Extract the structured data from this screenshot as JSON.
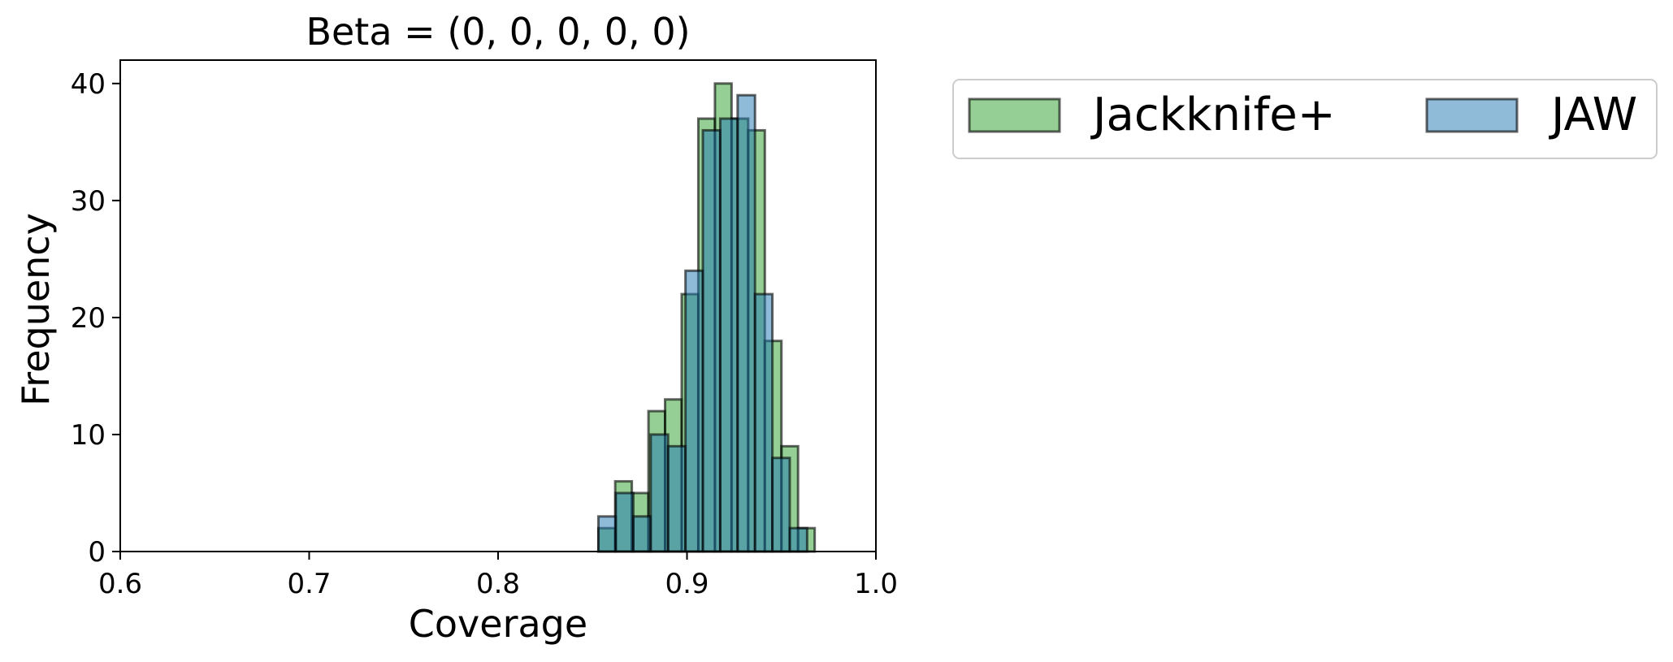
{
  "chart_data": {
    "type": "bar",
    "title": "Beta = (0, 0, 0, 0, 0)",
    "xlabel": "Coverage",
    "ylabel": "Frequency",
    "xlim": [
      0.6,
      1.0
    ],
    "ylim": [
      0,
      42
    ],
    "xticks": [
      0.6,
      0.7,
      0.8,
      0.9,
      1.0
    ],
    "xtick_labels": [
      "0.6",
      "0.7",
      "0.8",
      "0.9",
      "1.0"
    ],
    "yticks": [
      0,
      10,
      20,
      30,
      40
    ],
    "ytick_labels": [
      "0",
      "10",
      "20",
      "30",
      "40"
    ],
    "grid": false,
    "legend_position": "outside-right-top",
    "series": [
      {
        "name": "Jackknife+",
        "color": "#2ca02c",
        "bins": [
          {
            "x0": 0.8531,
            "x1": 0.862,
            "value": 2
          },
          {
            "x0": 0.862,
            "x1": 0.8708,
            "value": 6
          },
          {
            "x0": 0.8708,
            "x1": 0.8796,
            "value": 5
          },
          {
            "x0": 0.8796,
            "x1": 0.8884,
            "value": 12
          },
          {
            "x0": 0.8884,
            "x1": 0.8972,
            "value": 13
          },
          {
            "x0": 0.8972,
            "x1": 0.906,
            "value": 22
          },
          {
            "x0": 0.906,
            "x1": 0.9148,
            "value": 37
          },
          {
            "x0": 0.9148,
            "x1": 0.9236,
            "value": 40
          },
          {
            "x0": 0.9236,
            "x1": 0.9324,
            "value": 37
          },
          {
            "x0": 0.9324,
            "x1": 0.9412,
            "value": 36
          },
          {
            "x0": 0.9412,
            "x1": 0.95,
            "value": 18
          },
          {
            "x0": 0.95,
            "x1": 0.9588,
            "value": 9
          },
          {
            "x0": 0.9588,
            "x1": 0.9676,
            "value": 2
          }
        ]
      },
      {
        "name": "JAW",
        "color": "#1f77b4",
        "bins": [
          {
            "x0": 0.8531,
            "x1": 0.8623,
            "value": 3
          },
          {
            "x0": 0.8623,
            "x1": 0.8716,
            "value": 5
          },
          {
            "x0": 0.8716,
            "x1": 0.8808,
            "value": 3
          },
          {
            "x0": 0.8808,
            "x1": 0.89,
            "value": 10
          },
          {
            "x0": 0.89,
            "x1": 0.8992,
            "value": 9
          },
          {
            "x0": 0.8992,
            "x1": 0.9084,
            "value": 24
          },
          {
            "x0": 0.9084,
            "x1": 0.9176,
            "value": 36
          },
          {
            "x0": 0.9176,
            "x1": 0.9268,
            "value": 37
          },
          {
            "x0": 0.9268,
            "x1": 0.936,
            "value": 39
          },
          {
            "x0": 0.936,
            "x1": 0.9452,
            "value": 22
          },
          {
            "x0": 0.9452,
            "x1": 0.9544,
            "value": 8
          },
          {
            "x0": 0.9544,
            "x1": 0.9636,
            "value": 2
          }
        ]
      }
    ]
  }
}
